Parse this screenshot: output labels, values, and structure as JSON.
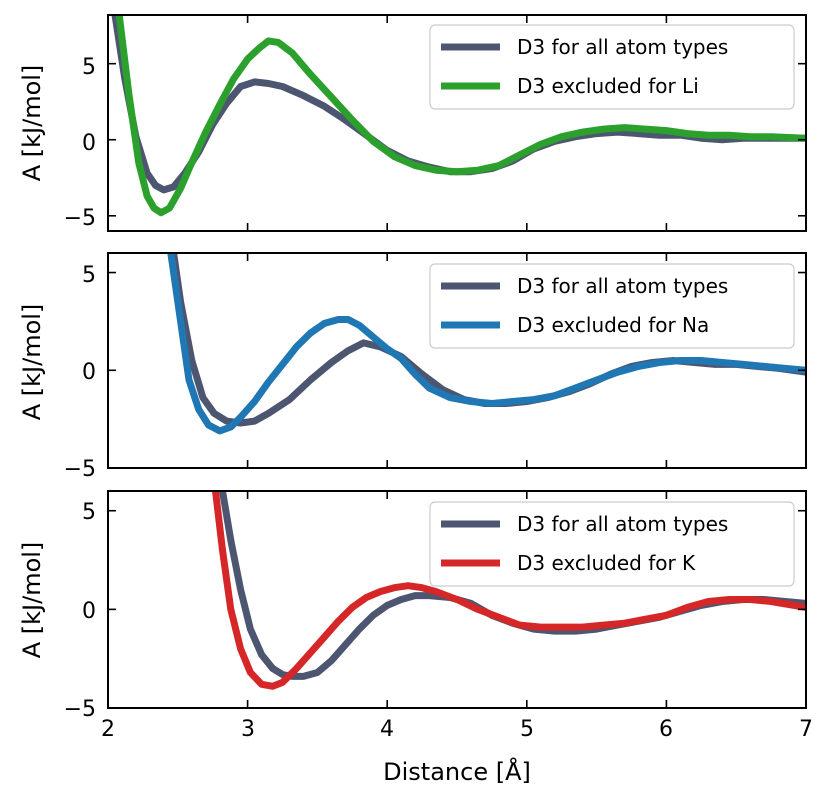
{
  "chart_data": {
    "type": "line",
    "xlabel": "Distance [Å]",
    "xlim": [
      2,
      7
    ],
    "xticks": [
      2,
      3,
      4,
      5,
      6,
      7
    ],
    "xtick_labels": [
      "2",
      "3",
      "4",
      "5",
      "6",
      "7"
    ],
    "colors": {
      "reference": "#4d5670",
      "Li": "#2ca02c",
      "Na": "#1f77b4",
      "K": "#d62728"
    },
    "panels": [
      {
        "ylabel": "A [kJ/mol]",
        "ylim": [
          -6,
          8.2
        ],
        "yticks": [
          -5,
          0,
          5
        ],
        "ytick_labels": [
          "−5",
          "0",
          "5"
        ],
        "legend_position": "top-right",
        "series": [
          {
            "name": "D3 for all atom types",
            "color": "#4d5670",
            "x": [
              2.05,
              2.12,
              2.2,
              2.28,
              2.34,
              2.4,
              2.47,
              2.55,
              2.65,
              2.75,
              2.85,
              2.95,
              3.05,
              3.15,
              3.25,
              3.4,
              3.55,
              3.7,
              3.85,
              4.0,
              4.15,
              4.3,
              4.45,
              4.6,
              4.75,
              4.9,
              5.05,
              5.2,
              5.35,
              5.5,
              5.65,
              5.8,
              5.95,
              6.1,
              6.25,
              6.4,
              6.55,
              6.7,
              6.85,
              7.0
            ],
            "y": [
              8.2,
              4.0,
              0.2,
              -2.2,
              -3.0,
              -3.3,
              -3.1,
              -2.2,
              -0.8,
              1.0,
              2.4,
              3.5,
              3.8,
              3.7,
              3.5,
              2.9,
              2.2,
              1.3,
              0.3,
              -0.7,
              -1.4,
              -1.8,
              -2.1,
              -2.1,
              -1.9,
              -1.4,
              -0.6,
              -0.1,
              0.2,
              0.4,
              0.5,
              0.4,
              0.3,
              0.3,
              0.1,
              0.0,
              0.1,
              0.1,
              0.1,
              0.1
            ]
          },
          {
            "name": "D3 excluded for Li",
            "color": "#2ca02c",
            "x": [
              2.08,
              2.15,
              2.22,
              2.28,
              2.33,
              2.38,
              2.44,
              2.52,
              2.6,
              2.7,
              2.8,
              2.9,
              3.0,
              3.08,
              3.15,
              3.22,
              3.32,
              3.45,
              3.6,
              3.75,
              3.9,
              4.05,
              4.2,
              4.35,
              4.5,
              4.65,
              4.8,
              4.95,
              5.1,
              5.25,
              5.4,
              5.55,
              5.7,
              5.85,
              6.0,
              6.15,
              6.3,
              6.45,
              6.6,
              6.75,
              7.0
            ],
            "y": [
              8.2,
              3.0,
              -1.5,
              -3.7,
              -4.5,
              -4.8,
              -4.5,
              -3.2,
              -1.5,
              0.5,
              2.3,
              4.0,
              5.3,
              6.0,
              6.5,
              6.4,
              5.7,
              4.3,
              2.8,
              1.3,
              -0.1,
              -1.1,
              -1.7,
              -2.0,
              -2.1,
              -2.0,
              -1.7,
              -1.0,
              -0.3,
              0.2,
              0.5,
              0.7,
              0.8,
              0.7,
              0.6,
              0.4,
              0.3,
              0.3,
              0.2,
              0.2,
              0.1
            ]
          }
        ]
      },
      {
        "ylabel": "A [kJ/mol]",
        "ylim": [
          -5,
          6
        ],
        "yticks": [
          -5,
          0,
          5
        ],
        "ytick_labels": [
          "−5",
          "0",
          "5"
        ],
        "legend_position": "top-right",
        "series": [
          {
            "name": "D3 for all atom types",
            "color": "#4d5670",
            "x": [
              2.47,
              2.52,
              2.6,
              2.68,
              2.76,
              2.85,
              2.95,
              3.05,
              3.15,
              3.3,
              3.45,
              3.6,
              3.72,
              3.83,
              3.95,
              4.1,
              4.25,
              4.4,
              4.55,
              4.7,
              4.85,
              5.0,
              5.15,
              5.3,
              5.45,
              5.6,
              5.75,
              5.9,
              6.05,
              6.2,
              6.35,
              6.5,
              6.65,
              6.8,
              7.0
            ],
            "y": [
              6.0,
              3.5,
              0.5,
              -1.4,
              -2.2,
              -2.6,
              -2.7,
              -2.6,
              -2.2,
              -1.5,
              -0.5,
              0.4,
              1.0,
              1.4,
              1.2,
              0.7,
              -0.2,
              -1.0,
              -1.5,
              -1.7,
              -1.7,
              -1.6,
              -1.4,
              -1.1,
              -0.7,
              -0.2,
              0.2,
              0.4,
              0.5,
              0.4,
              0.3,
              0.3,
              0.2,
              0.1,
              -0.1
            ]
          },
          {
            "name": "D3 excluded for Na",
            "color": "#1f77b4",
            "x": [
              2.45,
              2.52,
              2.58,
              2.65,
              2.72,
              2.8,
              2.88,
              2.95,
              3.05,
              3.15,
              3.25,
              3.35,
              3.45,
              3.55,
              3.65,
              3.72,
              3.8,
              3.9,
              4.0,
              4.1,
              4.2,
              4.3,
              4.45,
              4.6,
              4.75,
              4.9,
              5.05,
              5.2,
              5.35,
              5.5,
              5.65,
              5.8,
              5.95,
              6.1,
              6.25,
              6.4,
              6.55,
              6.7,
              6.85,
              7.0
            ],
            "y": [
              6.0,
              2.5,
              -0.5,
              -2.0,
              -2.8,
              -3.1,
              -2.9,
              -2.4,
              -1.6,
              -0.6,
              0.3,
              1.2,
              1.9,
              2.4,
              2.6,
              2.6,
              2.3,
              1.7,
              1.1,
              0.6,
              -0.2,
              -0.9,
              -1.4,
              -1.6,
              -1.7,
              -1.6,
              -1.5,
              -1.3,
              -0.9,
              -0.5,
              -0.1,
              0.2,
              0.4,
              0.5,
              0.5,
              0.4,
              0.3,
              0.2,
              0.1,
              0.0
            ]
          }
        ]
      },
      {
        "ylabel": "A [kJ/mol]",
        "ylim": [
          -5,
          6
        ],
        "yticks": [
          -5,
          0,
          5
        ],
        "ytick_labels": [
          "−5",
          "0",
          "5"
        ],
        "legend_position": "top-right",
        "series": [
          {
            "name": "D3 for all atom types",
            "color": "#4d5670",
            "x": [
              2.82,
              2.88,
              2.95,
              3.02,
              3.1,
              3.18,
              3.25,
              3.32,
              3.4,
              3.5,
              3.6,
              3.7,
              3.8,
              3.9,
              4.0,
              4.1,
              4.2,
              4.3,
              4.45,
              4.6,
              4.75,
              4.9,
              5.05,
              5.2,
              5.35,
              5.5,
              5.65,
              5.8,
              5.95,
              6.1,
              6.25,
              6.4,
              6.55,
              6.7,
              6.85,
              7.0
            ],
            "y": [
              6.0,
              3.5,
              1.0,
              -1.0,
              -2.3,
              -3.0,
              -3.3,
              -3.4,
              -3.4,
              -3.2,
              -2.6,
              -1.8,
              -1.0,
              -0.3,
              0.2,
              0.5,
              0.7,
              0.7,
              0.6,
              0.3,
              -0.3,
              -0.7,
              -1.0,
              -1.1,
              -1.1,
              -1.0,
              -0.8,
              -0.6,
              -0.4,
              -0.1,
              0.2,
              0.4,
              0.5,
              0.5,
              0.4,
              0.3
            ]
          },
          {
            "name": "D3 excluded for K",
            "color": "#d62728",
            "x": [
              2.77,
              2.82,
              2.88,
              2.95,
              3.02,
              3.1,
              3.18,
              3.25,
              3.35,
              3.45,
              3.55,
              3.65,
              3.75,
              3.85,
              3.95,
              4.05,
              4.15,
              4.25,
              4.35,
              4.5,
              4.65,
              4.8,
              4.95,
              5.1,
              5.25,
              5.4,
              5.55,
              5.7,
              5.85,
              6.0,
              6.15,
              6.3,
              6.45,
              6.6,
              6.75,
              7.0
            ],
            "y": [
              6.0,
              3.0,
              0.0,
              -2.0,
              -3.2,
              -3.8,
              -3.9,
              -3.7,
              -3.0,
              -2.2,
              -1.4,
              -0.6,
              0.1,
              0.6,
              0.9,
              1.1,
              1.2,
              1.1,
              0.9,
              0.5,
              0.0,
              -0.4,
              -0.8,
              -0.9,
              -0.9,
              -0.9,
              -0.8,
              -0.7,
              -0.5,
              -0.3,
              0.1,
              0.4,
              0.5,
              0.5,
              0.4,
              0.1
            ]
          }
        ]
      }
    ]
  }
}
